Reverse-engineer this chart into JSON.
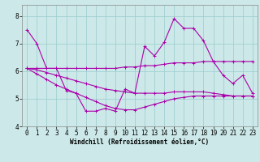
{
  "xlabel": "Windchill (Refroidissement éolien,°C)",
  "ylabel": "",
  "xlim": [
    -0.5,
    23.5
  ],
  "ylim": [
    4.0,
    8.4
  ],
  "yticks": [
    4,
    5,
    6,
    7,
    8
  ],
  "xticks": [
    0,
    1,
    2,
    3,
    4,
    5,
    6,
    7,
    8,
    9,
    10,
    11,
    12,
    13,
    14,
    15,
    16,
    17,
    18,
    19,
    20,
    21,
    22,
    23
  ],
  "bg_color": "#cce8e8",
  "grid_color": "#99cccc",
  "line_color": "#aa00aa",
  "lines": [
    {
      "x": [
        0,
        1,
        2,
        3,
        4,
        5,
        6,
        7,
        8,
        9,
        10,
        11,
        12,
        13,
        14,
        15,
        16,
        17,
        18,
        19,
        20,
        21,
        22,
        23
      ],
      "y": [
        7.5,
        7.0,
        6.1,
        6.1,
        5.3,
        5.2,
        4.55,
        4.55,
        4.65,
        4.55,
        5.35,
        5.2,
        6.9,
        6.55,
        7.05,
        7.9,
        7.55,
        7.55,
        7.1,
        6.35,
        5.85,
        5.55,
        5.85,
        5.2
      ]
    },
    {
      "x": [
        0,
        1,
        2,
        3,
        4,
        5,
        6,
        7,
        8,
        9,
        10,
        11,
        12,
        13,
        14,
        15,
        16,
        17,
        18,
        19,
        20,
        21,
        22,
        23
      ],
      "y": [
        6.1,
        6.1,
        6.1,
        6.1,
        6.1,
        6.1,
        6.1,
        6.1,
        6.1,
        6.1,
        6.15,
        6.15,
        6.2,
        6.2,
        6.25,
        6.3,
        6.3,
        6.3,
        6.35,
        6.35,
        6.35,
        6.35,
        6.35,
        6.35
      ]
    },
    {
      "x": [
        0,
        1,
        2,
        3,
        4,
        5,
        6,
        7,
        8,
        9,
        10,
        11,
        12,
        13,
        14,
        15,
        16,
        17,
        18,
        19,
        20,
        21,
        22,
        23
      ],
      "y": [
        6.1,
        6.05,
        5.95,
        5.85,
        5.75,
        5.65,
        5.55,
        5.45,
        5.35,
        5.3,
        5.25,
        5.2,
        5.2,
        5.2,
        5.2,
        5.25,
        5.25,
        5.25,
        5.25,
        5.2,
        5.15,
        5.1,
        5.1,
        5.1
      ]
    },
    {
      "x": [
        0,
        1,
        2,
        3,
        4,
        5,
        6,
        7,
        8,
        9,
        10,
        11,
        12,
        13,
        14,
        15,
        16,
        17,
        18,
        19,
        20,
        21,
        22,
        23
      ],
      "y": [
        6.1,
        5.9,
        5.7,
        5.5,
        5.35,
        5.2,
        5.05,
        4.9,
        4.75,
        4.65,
        4.6,
        4.6,
        4.7,
        4.8,
        4.9,
        5.0,
        5.05,
        5.1,
        5.1,
        5.1,
        5.1,
        5.1,
        5.1,
        5.1
      ]
    }
  ],
  "marker": "+",
  "markersize": 3,
  "linewidth": 0.8,
  "tick_fontsize": 5.5,
  "xlabel_fontsize": 5.5,
  "label_font": "monospace"
}
